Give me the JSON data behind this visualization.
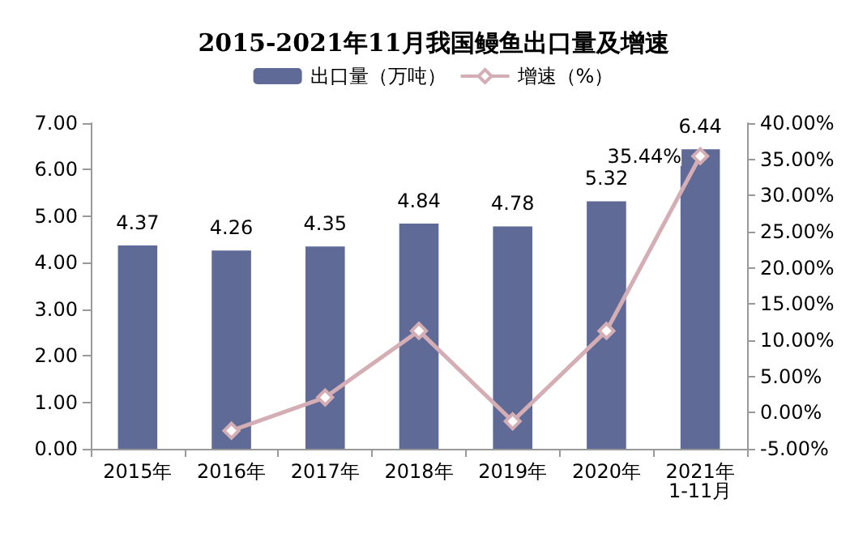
{
  "chart_data": {
    "type": "bar",
    "title": "2015-2021年11月我国鳗鱼出口量及增速",
    "categories": [
      "2015年",
      "2016年",
      "2017年",
      "2018年",
      "2019年",
      "2020年",
      "2021年\n1-11月"
    ],
    "series": [
      {
        "name": "出口量（万吨）",
        "color": "#5f6b96",
        "values": [
          4.37,
          4.26,
          4.35,
          4.84,
          4.78,
          5.32,
          6.44
        ],
        "value_labels": [
          "4.37",
          "4.26",
          "4.35",
          "4.84",
          "4.78",
          "5.32",
          "6.44"
        ]
      },
      {
        "name": "增速（%）",
        "type": "line",
        "axis": "y2",
        "color": "#d4aeb4",
        "marker": "diamond",
        "values": [
          null,
          -2.5,
          2.1,
          11.3,
          -1.2,
          11.3,
          35.44
        ],
        "value_labels": [
          null,
          null,
          null,
          null,
          null,
          null,
          "35.44%"
        ]
      }
    ],
    "ylim": [
      0,
      7
    ],
    "yticks": [
      {
        "value": 0,
        "label": "0.00"
      },
      {
        "value": 1,
        "label": "1.00"
      },
      {
        "value": 2,
        "label": "2.00"
      },
      {
        "value": 3,
        "label": "3.00"
      },
      {
        "value": 4,
        "label": "4.00"
      },
      {
        "value": 5,
        "label": "5.00"
      },
      {
        "value": 6,
        "label": "6.00"
      },
      {
        "value": 7,
        "label": "7.00"
      }
    ],
    "y2lim": [
      -5,
      40
    ],
    "y2ticks": [
      {
        "value": -5,
        "label": "-5.00%"
      },
      {
        "value": 0,
        "label": "0.00%"
      },
      {
        "value": 5,
        "label": "5.00%"
      },
      {
        "value": 10,
        "label": "10.00%"
      },
      {
        "value": 15,
        "label": "15.00%"
      },
      {
        "value": 20,
        "label": "20.00%"
      },
      {
        "value": 25,
        "label": "25.00%"
      },
      {
        "value": 30,
        "label": "30.00%"
      },
      {
        "value": 35,
        "label": "35.00%"
      },
      {
        "value": 40,
        "label": "40.00%"
      }
    ],
    "legend": "top",
    "grid": false
  }
}
